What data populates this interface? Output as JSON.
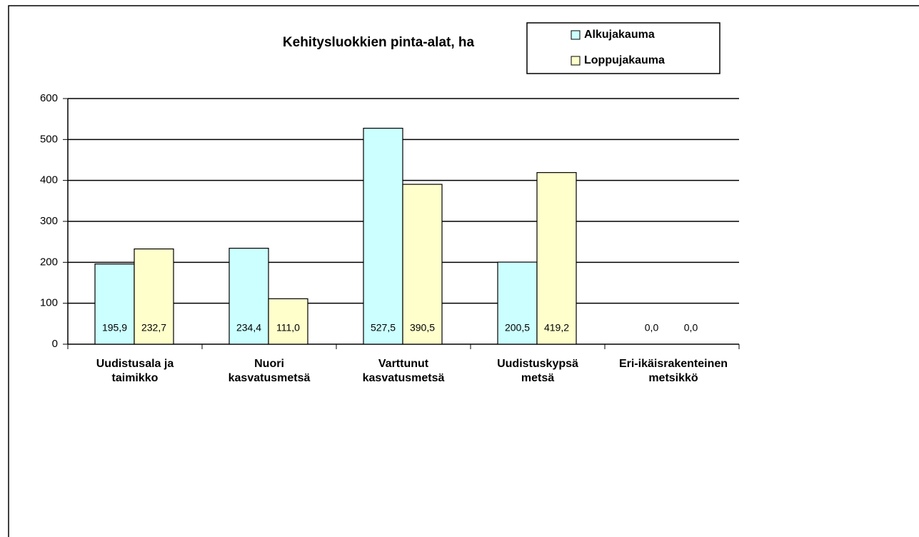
{
  "chart_data": {
    "type": "bar",
    "title": "Kehitysluokkien pinta-alat, ha",
    "categories": [
      "Uudistusala ja taimikko",
      "Nuori kasvatusmetsä",
      "Varttunut kasvatusmetsä",
      "Uudistuskypsä metsä",
      "Eri-ikäisrakenteinen metsikkö"
    ],
    "series": [
      {
        "name": "Alkujakauma",
        "color": "#ccffff",
        "values": [
          195.9,
          234.4,
          527.5,
          200.5,
          0
        ],
        "value_labels": [
          "195,9",
          "234,4",
          "527,5",
          "200,5",
          "0,0"
        ]
      },
      {
        "name": "Loppujakauma",
        "color": "#ffffcc",
        "values": [
          232.7,
          111.0,
          390.5,
          419.2,
          0
        ],
        "value_labels": [
          "232,7",
          "111,0",
          "390,5",
          "419,2",
          "0,0"
        ]
      }
    ],
    "ylim": [
      0,
      600
    ],
    "yticks": [
      0,
      100,
      200,
      300,
      400,
      500,
      600
    ],
    "grid": true,
    "legend": "top-right"
  }
}
